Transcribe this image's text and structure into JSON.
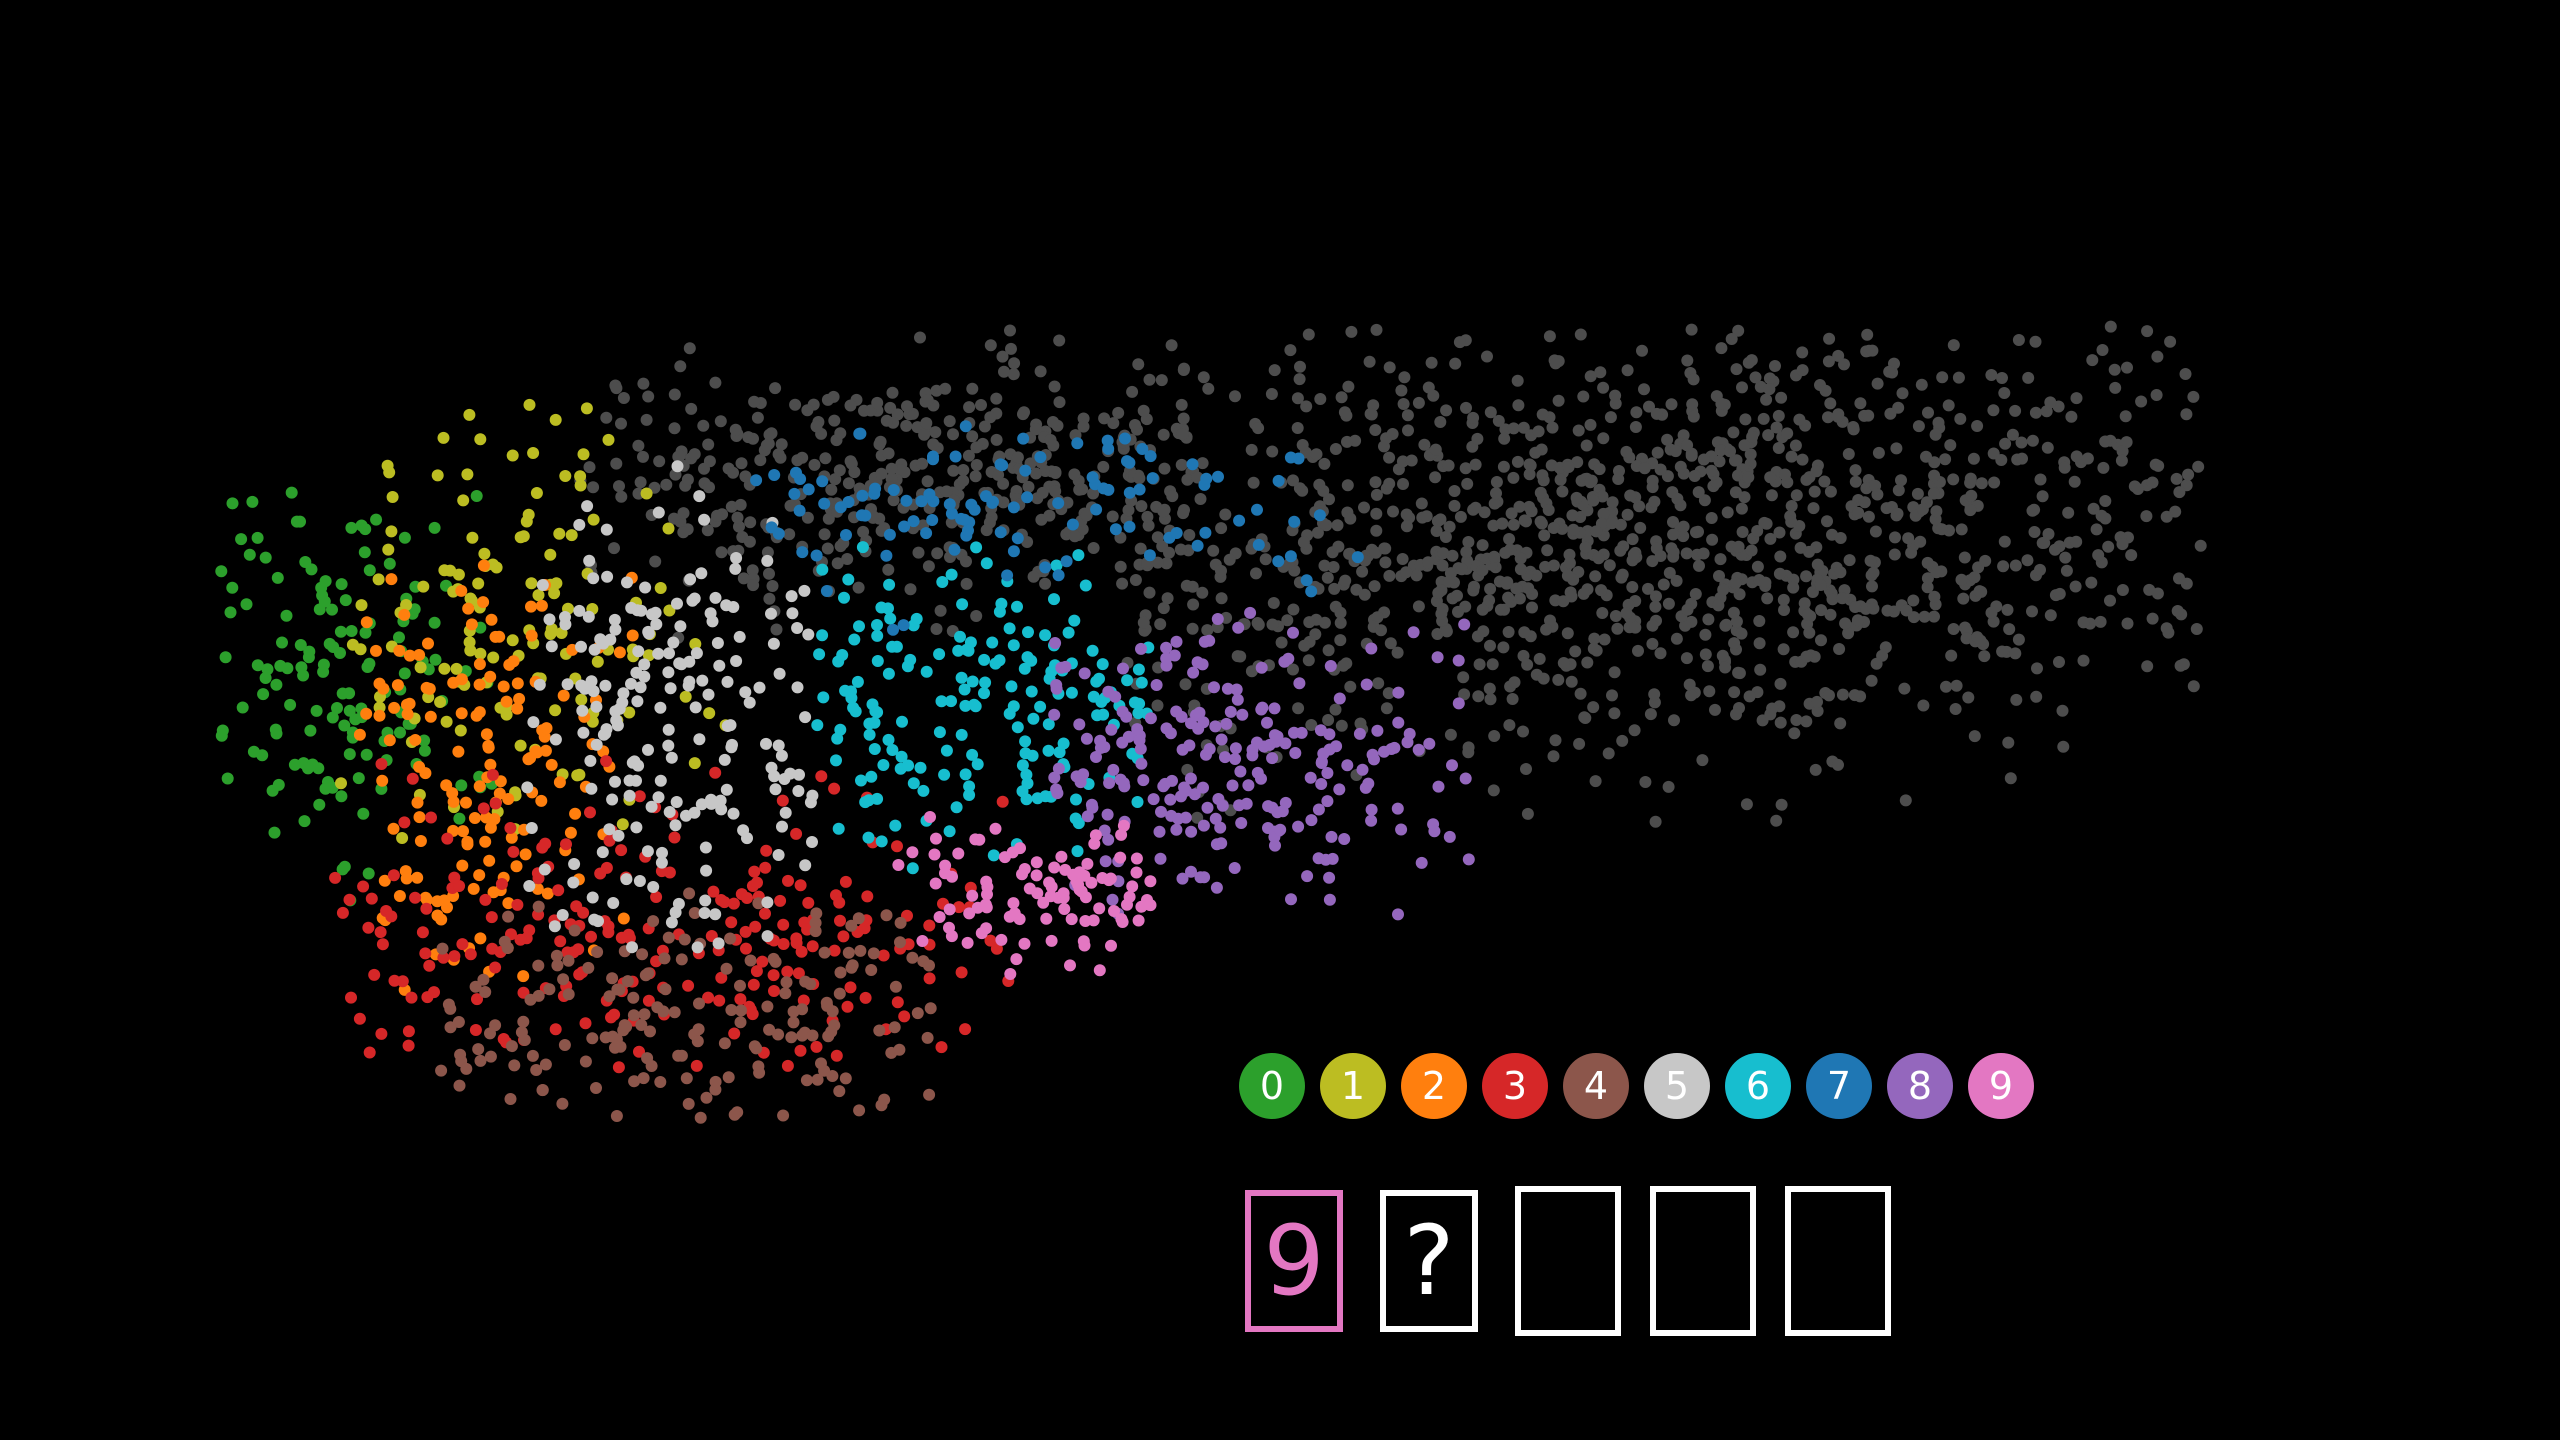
{
  "chart_data": {
    "type": "scatter",
    "title": "",
    "xlabel": "",
    "ylabel": "",
    "grid": false,
    "axes_visible": false,
    "xlim": [
      0,
      100
    ],
    "ylim": [
      0,
      100
    ],
    "legend": {
      "placement": "bottom-right",
      "entries": [
        {
          "label": "0",
          "color": "#2ca02c"
        },
        {
          "label": "1",
          "color": "#bcbd22"
        },
        {
          "label": "2",
          "color": "#ff7f0e"
        },
        {
          "label": "3",
          "color": "#d62728"
        },
        {
          "label": "4",
          "color": "#8c564b"
        },
        {
          "label": "5",
          "color": "#c7c7c7"
        },
        {
          "label": "6",
          "color": "#17becf"
        },
        {
          "label": "7",
          "color": "#1f77b4"
        },
        {
          "label": "8",
          "color": "#9467bd"
        },
        {
          "label": "9",
          "color": "#e377c2"
        }
      ]
    },
    "unlabeled_color": "#4d4d4d",
    "clusters": [
      {
        "label": "unlabeled",
        "center": [
          35,
          24
        ],
        "spread": [
          11,
          6
        ],
        "count": 420,
        "region": [
          [
            18,
            5
          ],
          [
            50,
            42
          ]
        ]
      },
      {
        "label": "unlabeled",
        "center": [
          73,
          30
        ],
        "spread": [
          18,
          12
        ],
        "count": 1200,
        "region": [
          [
            45,
            8
          ],
          [
            100,
            60
          ]
        ]
      },
      {
        "label": "0",
        "center": [
          5,
          44
        ],
        "spread": [
          5,
          11
        ],
        "count": 140,
        "region": [
          [
            0,
            25
          ],
          [
            15,
            70
          ]
        ]
      },
      {
        "label": "1",
        "center": [
          15,
          37
        ],
        "spread": [
          6,
          12
        ],
        "count": 130,
        "region": [
          [
            6,
            15
          ],
          [
            27,
            62
          ]
        ]
      },
      {
        "label": "2",
        "center": [
          13,
          53
        ],
        "spread": [
          4,
          12
        ],
        "count": 150,
        "region": [
          [
            7,
            30
          ],
          [
            21,
            80
          ]
        ]
      },
      {
        "label": "3",
        "center": [
          23,
          73
        ],
        "spread": [
          11,
          9
        ],
        "count": 230,
        "region": [
          [
            5,
            52
          ],
          [
            40,
            86
          ]
        ]
      },
      {
        "label": "4",
        "center": [
          24,
          81
        ],
        "spread": [
          10,
          6
        ],
        "count": 180,
        "region": [
          [
            11,
            64
          ],
          [
            36,
            91
          ]
        ]
      },
      {
        "label": "5",
        "center": [
          23,
          48
        ],
        "spread": [
          5,
          12
        ],
        "count": 200,
        "region": [
          [
            15,
            22
          ],
          [
            30,
            74
          ]
        ]
      },
      {
        "label": "6",
        "center": [
          36,
          47
        ],
        "spread": [
          8,
          8
        ],
        "count": 180,
        "region": [
          [
            30,
            30
          ],
          [
            47,
            65
          ]
        ]
      },
      {
        "label": "7",
        "center": [
          38,
          27
        ],
        "spread": [
          11,
          5
        ],
        "count": 110,
        "region": [
          [
            27,
            17
          ],
          [
            58,
            40
          ]
        ]
      },
      {
        "label": "8",
        "center": [
          51,
          54
        ],
        "spread": [
          8,
          7
        ],
        "count": 230,
        "region": [
          [
            42,
            38
          ],
          [
            63,
            70
          ]
        ]
      },
      {
        "label": "9",
        "center": [
          41,
          67
        ],
        "spread": [
          6,
          4
        ],
        "count": 100,
        "region": [
          [
            34,
            56
          ],
          [
            48,
            76
          ]
        ]
      }
    ]
  },
  "sequence": {
    "boxes": [
      {
        "text": "9",
        "color": "#e377c2"
      },
      {
        "text": "?",
        "color": "#ffffff"
      },
      {
        "text": "",
        "color": "#ffffff"
      },
      {
        "text": "",
        "color": "#ffffff"
      },
      {
        "text": "",
        "color": "#ffffff"
      }
    ]
  }
}
